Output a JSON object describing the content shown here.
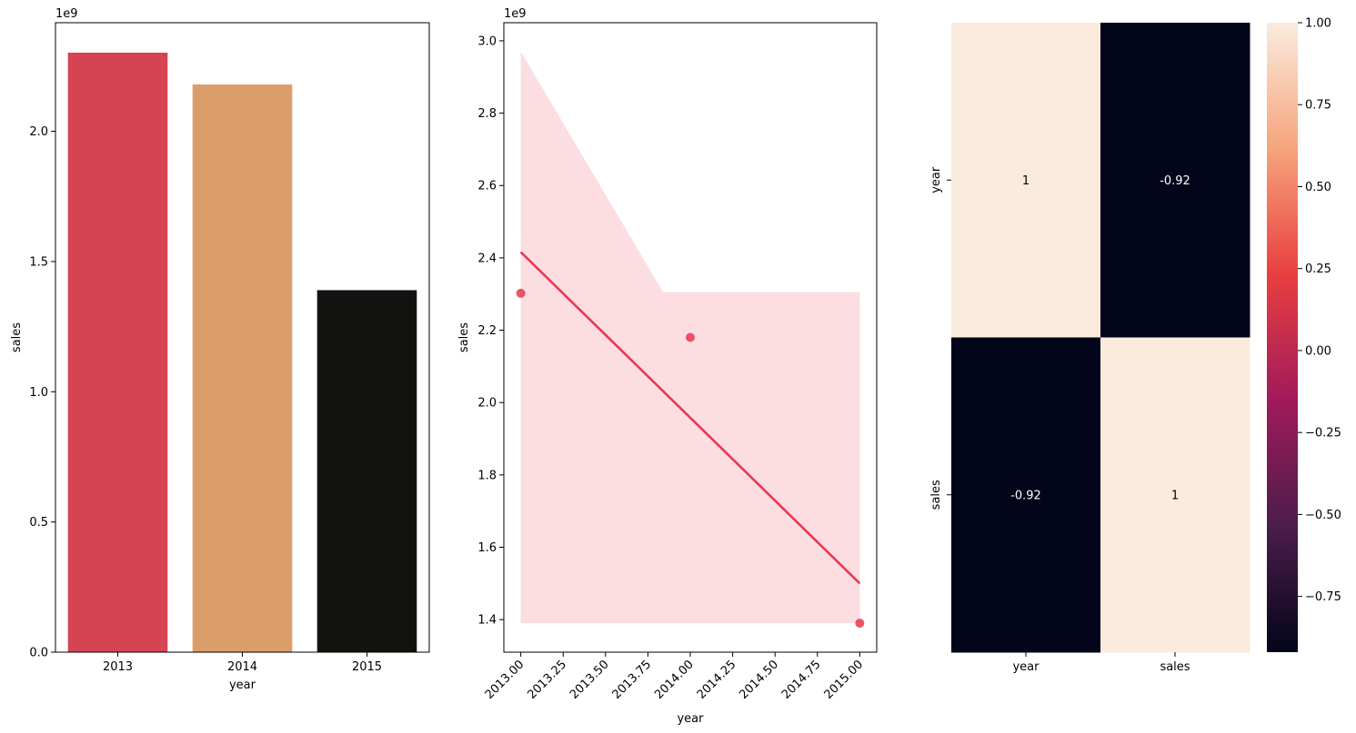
{
  "chart_data": [
    {
      "type": "bar",
      "categories": [
        "2013",
        "2014",
        "2015"
      ],
      "values": [
        2302000000,
        2180000000,
        1390000000
      ],
      "colors": [
        "#d64454",
        "#db9e6b",
        "#121210"
      ],
      "xlabel": "year",
      "ylabel": "sales",
      "offset_text": "1e9",
      "ylim": [
        0,
        2417000000
      ],
      "yticks": [
        0,
        500000000,
        1000000000,
        1500000000,
        2000000000
      ],
      "ytick_labels": [
        "0.0",
        "0.5",
        "1.0",
        "1.5",
        "2.0"
      ]
    },
    {
      "type": "scatter",
      "x": [
        2013,
        2014,
        2015
      ],
      "y": [
        2302000000,
        2180000000,
        1390000000
      ],
      "point_color": "#e8384f",
      "regression_line": {
        "x": [
          2013,
          2015
        ],
        "y": [
          2416000000,
          1500000000
        ],
        "color": "#e8384f"
      },
      "confidence_band": {
        "x": [
          2013,
          2013.84,
          2015
        ],
        "upper": [
          2970000000,
          2305000000,
          2305000000
        ],
        "lower": [
          1390000000,
          1390000000,
          1390000000
        ],
        "color": "#fbdde2"
      },
      "xlabel": "year",
      "ylabel": "sales",
      "offset_text": "1e9",
      "xlim": [
        2012.9,
        2015.1
      ],
      "ylim": [
        1310000000,
        3050000000
      ],
      "xticks": [
        2013,
        2013.25,
        2013.5,
        2013.75,
        2014,
        2014.25,
        2014.5,
        2014.75,
        2015
      ],
      "xtick_labels": [
        "2013.00",
        "2013.25",
        "2013.50",
        "2013.75",
        "2014.00",
        "2014.25",
        "2014.50",
        "2014.75",
        "2015.00"
      ],
      "yticks": [
        1400000000,
        1600000000,
        1800000000,
        2000000000,
        2200000000,
        2400000000,
        2600000000,
        2800000000,
        3000000000
      ],
      "ytick_labels": [
        "1.4",
        "1.6",
        "1.8",
        "2.0",
        "2.2",
        "2.4",
        "2.6",
        "2.8",
        "3.0"
      ]
    },
    {
      "type": "heatmap",
      "rows": [
        "year",
        "sales"
      ],
      "columns": [
        "year",
        "sales"
      ],
      "values": [
        [
          1,
          -0.92
        ],
        [
          -0.92,
          1
        ]
      ],
      "annotations": [
        [
          "1",
          "-0.92"
        ],
        [
          "-0.92",
          "1"
        ]
      ],
      "cell_colors": [
        [
          "#faebdd",
          "#03051a"
        ],
        [
          "#03051a",
          "#faebdd"
        ]
      ],
      "annotation_colors": [
        [
          "#000000",
          "#ffffff"
        ],
        [
          "#ffffff",
          "#000000"
        ]
      ],
      "colorbar": {
        "range": [
          -0.92,
          1
        ],
        "ticks": [
          1.0,
          0.75,
          0.5,
          0.25,
          0.0,
          -0.25,
          -0.5,
          -0.75
        ],
        "tick_labels": [
          "1.00",
          "0.75",
          "0.50",
          "0.25",
          "0.00",
          "−0.25",
          "−0.50",
          "−0.75"
        ],
        "colormap": "rocket",
        "stops": [
          "#03051a",
          "#4c1d4b",
          "#a11a5b",
          "#e83f3f",
          "#f6a47c",
          "#faebdd"
        ]
      }
    }
  ]
}
